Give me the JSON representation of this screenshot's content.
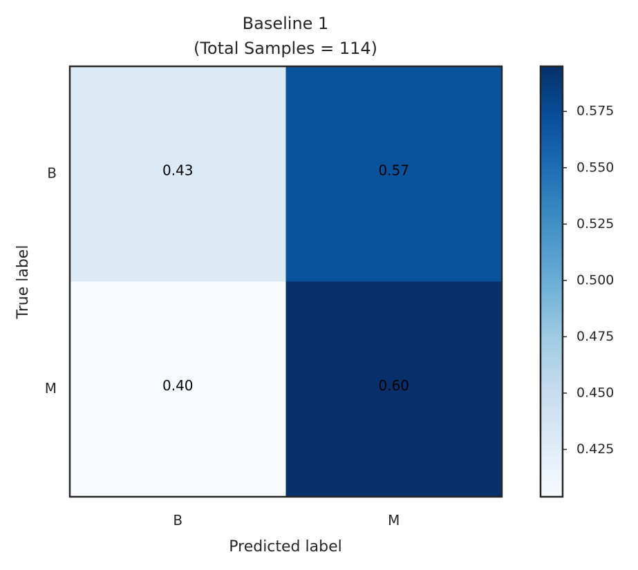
{
  "chart_data": {
    "type": "heatmap",
    "title": "Baseline 1",
    "subtitle": "(Total Samples = 114)",
    "xlabel": "Predicted label",
    "ylabel": "True label",
    "x_categories": [
      "B",
      "M"
    ],
    "y_categories": [
      "B",
      "M"
    ],
    "values": [
      [
        0.43,
        0.57
      ],
      [
        0.4,
        0.6
      ]
    ],
    "cell_labels": [
      [
        "0.43",
        "0.57"
      ],
      [
        "0.40",
        "0.60"
      ]
    ],
    "colormap": "Blues",
    "colorbar": {
      "min": 0.404,
      "max": 0.595,
      "ticks": [
        "0.425",
        "0.450",
        "0.475",
        "0.500",
        "0.525",
        "0.550",
        "0.575"
      ]
    }
  }
}
